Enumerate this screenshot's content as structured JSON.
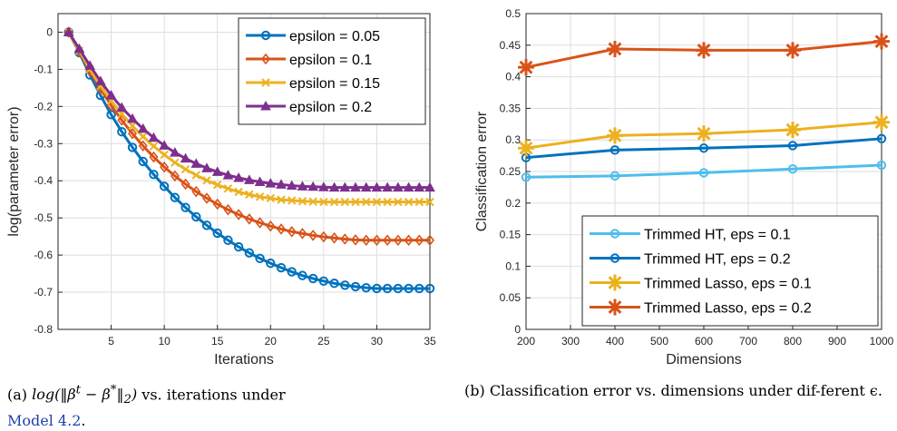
{
  "chart_data": [
    {
      "type": "line",
      "xlabel": "Iterations",
      "ylabel": "log(parameter error)",
      "xlim": [
        0,
        35
      ],
      "ylim": [
        -0.8,
        0.05
      ],
      "xticks": [
        "5",
        "10",
        "15",
        "20",
        "25",
        "30",
        "35"
      ],
      "yticks": [
        "0",
        "-0.1",
        "-0.2",
        "-0.3",
        "-0.4",
        "-0.5",
        "-0.6",
        "-0.7",
        "-0.8"
      ],
      "grid": true,
      "legend": "top-right",
      "x": [
        1,
        2,
        3,
        4,
        5,
        6,
        7,
        8,
        9,
        10,
        11,
        12,
        13,
        14,
        15,
        16,
        17,
        18,
        19,
        20,
        21,
        22,
        23,
        24,
        25,
        26,
        27,
        28,
        29,
        30,
        31,
        32,
        33,
        34,
        35
      ],
      "series": [
        {
          "name": "epsilon = 0.05",
          "color": "#0072BD",
          "marker": "circle",
          "values": [
            0,
            -0.055,
            -0.115,
            -0.17,
            -0.222,
            -0.268,
            -0.31,
            -0.348,
            -0.383,
            -0.415,
            -0.445,
            -0.472,
            -0.497,
            -0.52,
            -0.541,
            -0.56,
            -0.578,
            -0.594,
            -0.609,
            -0.622,
            -0.634,
            -0.645,
            -0.655,
            -0.663,
            -0.67,
            -0.676,
            -0.681,
            -0.685,
            -0.688,
            -0.69,
            -0.69,
            -0.69,
            -0.69,
            -0.69,
            -0.69
          ]
        },
        {
          "name": "epsilon = 0.1",
          "color": "#D95319",
          "marker": "diamond",
          "values": [
            0,
            -0.052,
            -0.105,
            -0.153,
            -0.197,
            -0.237,
            -0.273,
            -0.306,
            -0.336,
            -0.363,
            -0.387,
            -0.409,
            -0.429,
            -0.447,
            -0.463,
            -0.478,
            -0.491,
            -0.503,
            -0.513,
            -0.522,
            -0.53,
            -0.537,
            -0.542,
            -0.547,
            -0.551,
            -0.554,
            -0.557,
            -0.559,
            -0.56,
            -0.56,
            -0.56,
            -0.56,
            -0.56,
            -0.56,
            -0.56
          ]
        },
        {
          "name": "epsilon = 0.15",
          "color": "#EDB120",
          "marker": "x",
          "values": [
            0,
            -0.05,
            -0.1,
            -0.145,
            -0.185,
            -0.22,
            -0.252,
            -0.281,
            -0.307,
            -0.33,
            -0.351,
            -0.369,
            -0.385,
            -0.399,
            -0.411,
            -0.421,
            -0.43,
            -0.437,
            -0.443,
            -0.447,
            -0.451,
            -0.453,
            -0.455,
            -0.456,
            -0.457,
            -0.457,
            -0.457,
            -0.457,
            -0.457,
            -0.457,
            -0.457,
            -0.457,
            -0.457,
            -0.457,
            -0.457
          ]
        },
        {
          "name": "epsilon = 0.2",
          "color": "#7E2F8E",
          "marker": "triangle",
          "values": [
            0,
            -0.045,
            -0.09,
            -0.132,
            -0.17,
            -0.203,
            -0.233,
            -0.26,
            -0.284,
            -0.305,
            -0.324,
            -0.34,
            -0.354,
            -0.366,
            -0.376,
            -0.385,
            -0.392,
            -0.398,
            -0.403,
            -0.407,
            -0.41,
            -0.413,
            -0.415,
            -0.416,
            -0.417,
            -0.418,
            -0.418,
            -0.418,
            -0.418,
            -0.418,
            -0.418,
            -0.418,
            -0.418,
            -0.418,
            -0.418
          ]
        }
      ]
    },
    {
      "type": "line",
      "xlabel": "Dimensions",
      "ylabel": "Classification error",
      "xlim": [
        200,
        1000
      ],
      "ylim": [
        0,
        0.5
      ],
      "xticks": [
        "200",
        "300",
        "400",
        "500",
        "600",
        "700",
        "800",
        "900",
        "1000"
      ],
      "yticks": [
        "0",
        "0.05",
        "0.1",
        "0.15",
        "0.2",
        "0.25",
        "0.3",
        "0.35",
        "0.4",
        "0.45",
        "0.5"
      ],
      "grid": true,
      "legend": "bottom-right",
      "x": [
        200,
        400,
        600,
        800,
        1000
      ],
      "series": [
        {
          "name": "Trimmed HT, eps = 0.1",
          "color": "#4DBEEE",
          "marker": "circle",
          "values": [
            0.241,
            0.243,
            0.248,
            0.254,
            0.26
          ]
        },
        {
          "name": "Trimmed HT, eps = 0.2",
          "color": "#0072BD",
          "marker": "circle",
          "values": [
            0.272,
            0.284,
            0.287,
            0.291,
            0.302
          ]
        },
        {
          "name": "Trimmed Lasso, eps = 0.1",
          "color": "#EDB120",
          "marker": "asterisk",
          "values": [
            0.287,
            0.307,
            0.31,
            0.316,
            0.328
          ]
        },
        {
          "name": "Trimmed Lasso, eps = 0.2",
          "color": "#D95319",
          "marker": "asterisk",
          "values": [
            0.415,
            0.444,
            0.442,
            0.442,
            0.456
          ]
        }
      ]
    }
  ],
  "captions": {
    "a_label": "(a)",
    "a_expr": "log(‖β",
    "a_sup_t": "t",
    "a_minus": " − β",
    "a_sup_star": "*",
    "a_close": "‖",
    "a_sub2": "2",
    "a_paren": ")",
    "a_rest": " vs.   iterations under",
    "a_link": "Model 4.2",
    "a_dot": ".",
    "b_text": "(b) Classification error vs. dimensions under dif-ferent ϵ."
  }
}
